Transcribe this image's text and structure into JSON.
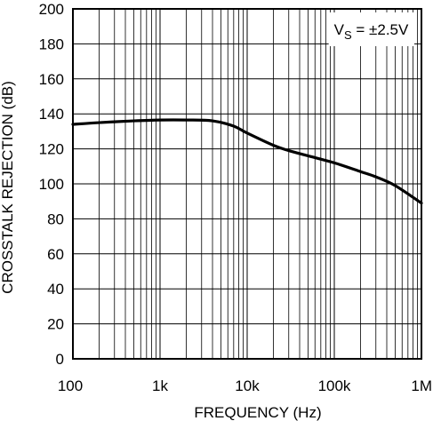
{
  "chart_data": {
    "type": "line",
    "title": "",
    "xlabel": "FREQUENCY (Hz)",
    "ylabel": "CROSSTALK REJECTION (dB)",
    "x_scale": "log",
    "xlim": [
      100,
      1000000
    ],
    "ylim": [
      0,
      200
    ],
    "x_ticks": [
      100,
      1000,
      10000,
      100000,
      1000000
    ],
    "x_tick_labels": [
      "100",
      "1k",
      "10k",
      "100k",
      "1M"
    ],
    "y_ticks": [
      0,
      20,
      40,
      60,
      80,
      100,
      120,
      140,
      160,
      180,
      200
    ],
    "y_tick_labels": [
      "0",
      "20",
      "40",
      "60",
      "80",
      "100",
      "120",
      "140",
      "160",
      "180",
      "200"
    ],
    "grid": true,
    "annotation": {
      "text_main": "V",
      "text_sub": "S",
      "text_rest": " = ±2.5V",
      "placement": "top-right"
    },
    "series": [
      {
        "x": [
          100,
          200,
          500,
          1000,
          2000,
          4000,
          7000,
          10000,
          20000,
          30000,
          50000,
          100000,
          200000,
          300000,
          500000,
          1000000
        ],
        "values": [
          134,
          135,
          136,
          136.5,
          136.5,
          136,
          133,
          129,
          122,
          119,
          116,
          112,
          107,
          104,
          99,
          89
        ]
      }
    ]
  }
}
